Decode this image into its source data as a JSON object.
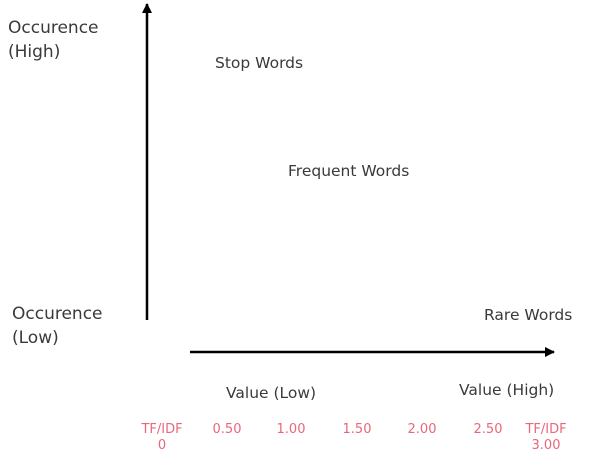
{
  "y_axis": {
    "top_label_line1": "Occurence",
    "top_label_line2": "(High)",
    "bottom_label_line1": "Occurence",
    "bottom_label_line2": "(Low)"
  },
  "x_axis": {
    "low_label": "Value (Low)",
    "high_label": "Value (High)"
  },
  "regions": {
    "stop_words": "Stop Words",
    "frequent_words": "Frequent Words",
    "rare_words": "Rare Words"
  },
  "scale": {
    "color": "#e8687a",
    "ticks": [
      {
        "line1": "TF/IDF",
        "line2": "0"
      },
      {
        "line1": "0.50",
        "line2": ""
      },
      {
        "line1": "1.00",
        "line2": ""
      },
      {
        "line1": "1.50",
        "line2": ""
      },
      {
        "line1": "2.00",
        "line2": ""
      },
      {
        "line1": "2.50",
        "line2": ""
      },
      {
        "line1": "TF/IDF",
        "line2": "3.00"
      }
    ]
  },
  "colors": {
    "arrow": "#000000",
    "text": "#3a3a3a"
  }
}
